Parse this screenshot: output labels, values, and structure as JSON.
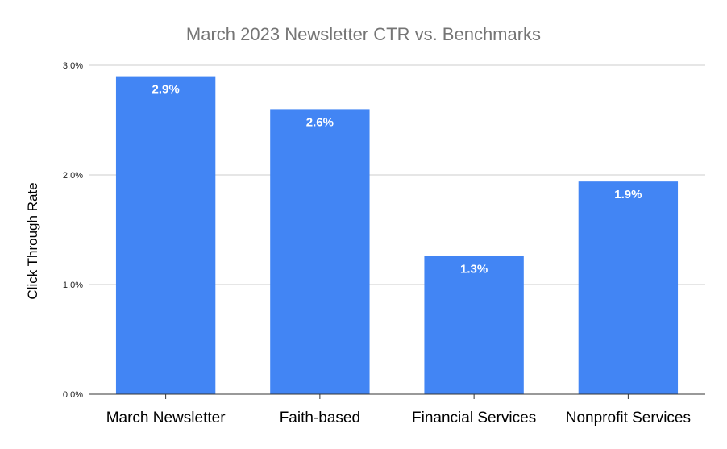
{
  "chart_data": {
    "type": "bar",
    "title": "March 2023 Newsletter CTR vs. Benchmarks",
    "xlabel": "",
    "ylabel": "Click Through Rate",
    "categories": [
      "March Newsletter",
      "Faith-based",
      "Financial Services",
      "Nonprofit Services"
    ],
    "values": [
      2.9,
      2.6,
      1.26,
      1.94
    ],
    "data_labels": [
      "2.9%",
      "2.6%",
      "1.3%",
      "1.9%"
    ],
    "ylim": [
      0,
      3
    ],
    "yticks": [
      0,
      1,
      2,
      3
    ],
    "ytick_labels": [
      "0.0%",
      "1.0%",
      "2.0%",
      "3.0%"
    ],
    "grid": true,
    "legend": "none",
    "colors": {
      "bar": "#4285f4",
      "grid": "#cccccc",
      "axis": "#333333"
    }
  }
}
